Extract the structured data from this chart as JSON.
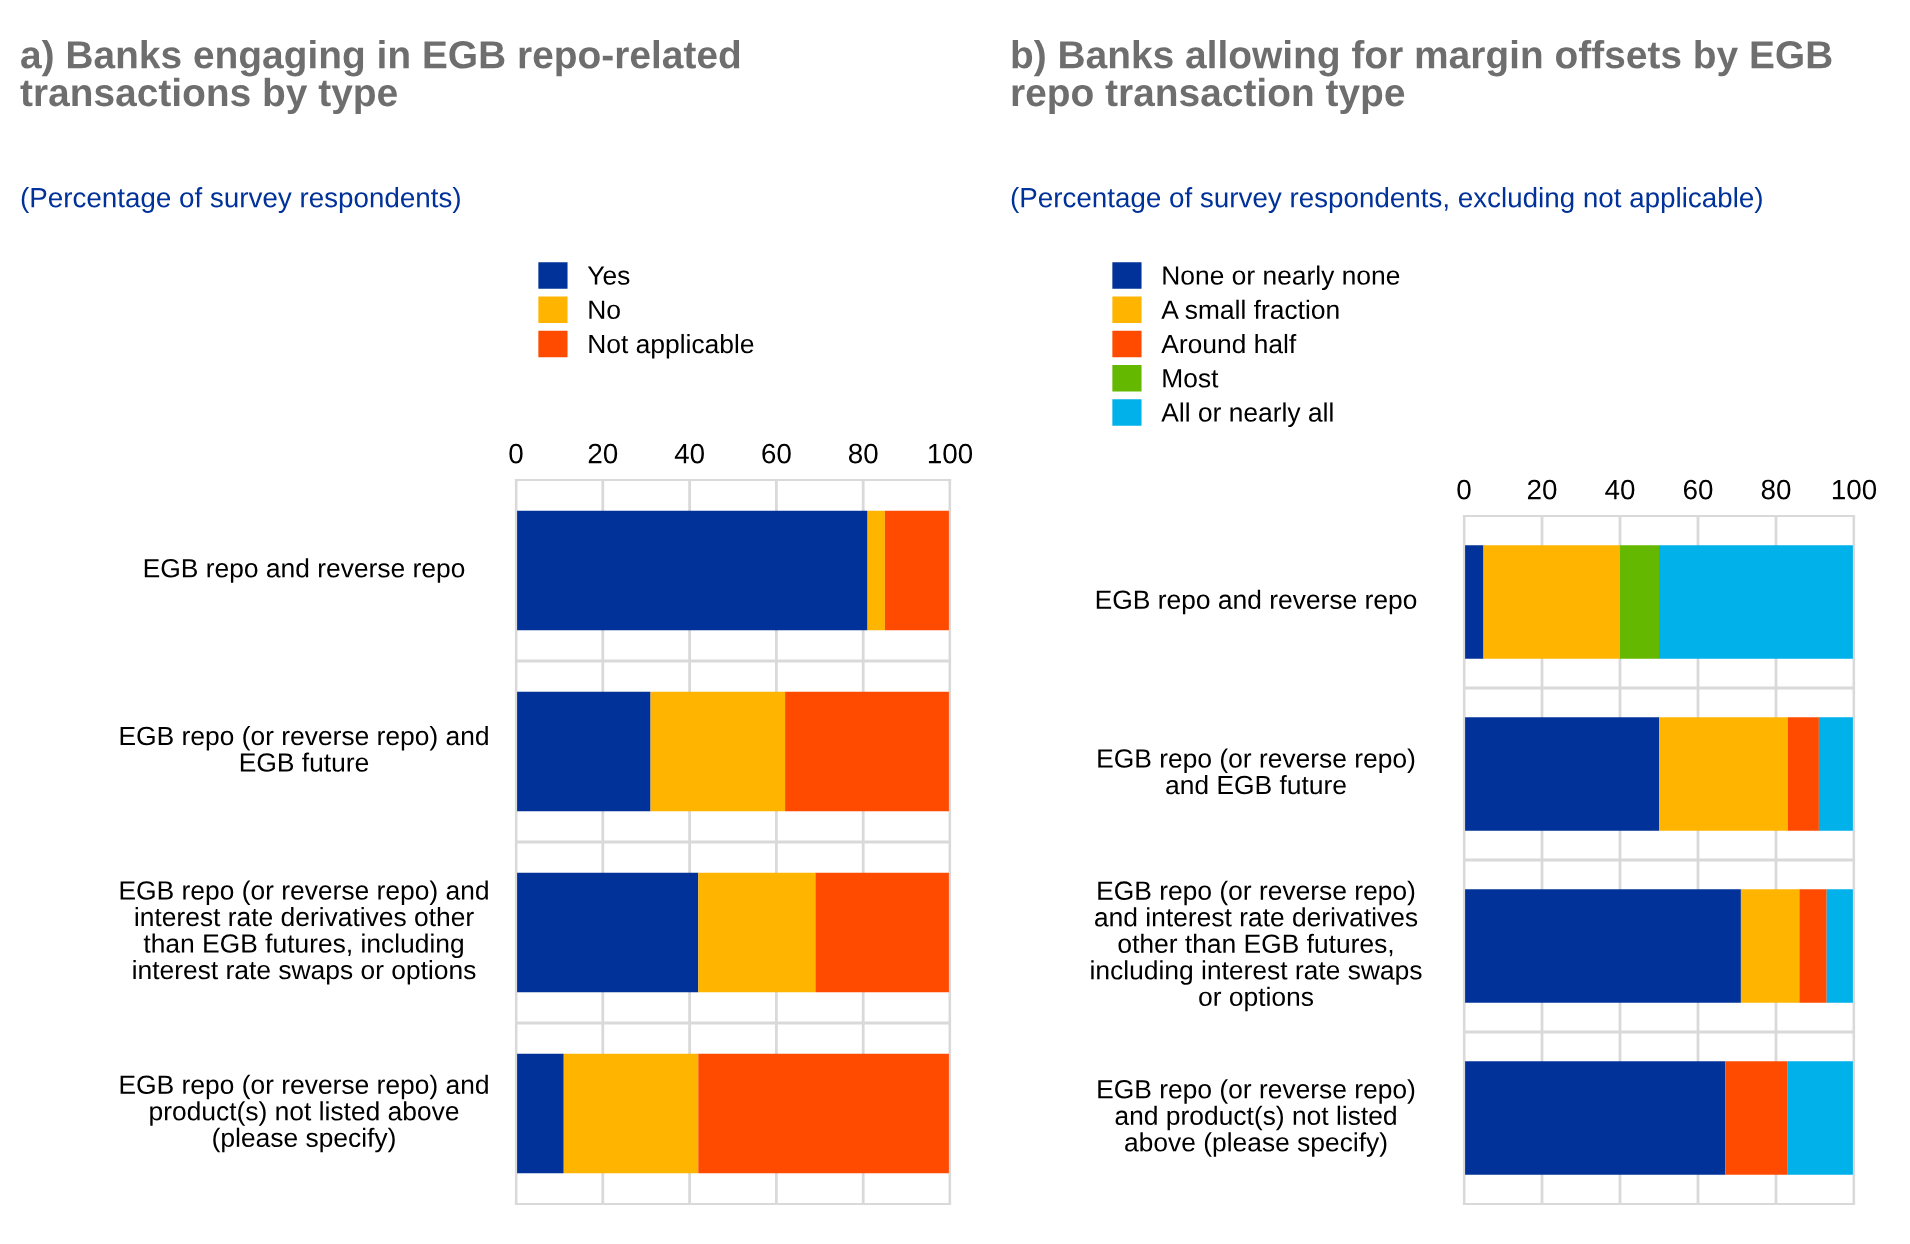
{
  "chart_data": [
    {
      "type": "bar",
      "orientation": "horizontal",
      "stacked": true,
      "title": "a) Banks engaging in EGB repo-related\ntransactions by type",
      "subtitle": "(Percentage of survey respondents)",
      "categories": [
        "EGB repo and reverse repo",
        "EGB repo (or reverse repo) and\nEGB future",
        "EGB repo (or reverse repo) and\ninterest rate derivatives other\nthan EGB futures, including\ninterest rate swaps or options",
        "EGB repo (or reverse repo) and\nproduct(s) not listed above\n(please specify)"
      ],
      "series": [
        {
          "name": "Yes",
          "color": "#003299",
          "values": [
            81,
            31,
            42,
            11
          ]
        },
        {
          "name": "No",
          "color": "#ffb400",
          "values": [
            4,
            31,
            27,
            31
          ]
        },
        {
          "name": "Not applicable",
          "color": "#ff4b00",
          "values": [
            15,
            38,
            31,
            58
          ]
        }
      ],
      "xlim": [
        0,
        100
      ],
      "xticks": [
        0,
        20,
        40,
        60,
        80,
        100
      ],
      "grid": "x",
      "legend": "top"
    },
    {
      "type": "bar",
      "orientation": "horizontal",
      "stacked": true,
      "title": "b) Banks allowing for margin offsets by EGB\nrepo transaction type",
      "subtitle": "(Percentage of survey respondents, excluding not applicable)",
      "categories": [
        "EGB repo and reverse repo",
        "EGB repo (or reverse repo)\nand EGB future",
        "EGB repo (or reverse repo)\nand interest rate derivatives\nother than EGB futures,\nincluding interest rate swaps\nor options",
        "EGB repo (or reverse repo)\nand product(s) not listed\nabove (please specify)"
      ],
      "series": [
        {
          "name": "None or nearly none",
          "color": "#003299",
          "values": [
            5,
            50,
            71,
            67
          ]
        },
        {
          "name": "A small fraction",
          "color": "#ffb400",
          "values": [
            35,
            33,
            15,
            0
          ]
        },
        {
          "name": "Around half",
          "color": "#ff4b00",
          "values": [
            0,
            8,
            7,
            16
          ]
        },
        {
          "name": "Most",
          "color": "#65b800",
          "values": [
            10,
            0,
            0,
            0
          ]
        },
        {
          "name": "All or nearly all",
          "color": "#00b1ea",
          "values": [
            50,
            9,
            7,
            17
          ]
        }
      ],
      "xlim": [
        0,
        100
      ],
      "xticks": [
        0,
        20,
        40,
        60,
        80,
        100
      ],
      "grid": "x",
      "legend": "top"
    }
  ]
}
